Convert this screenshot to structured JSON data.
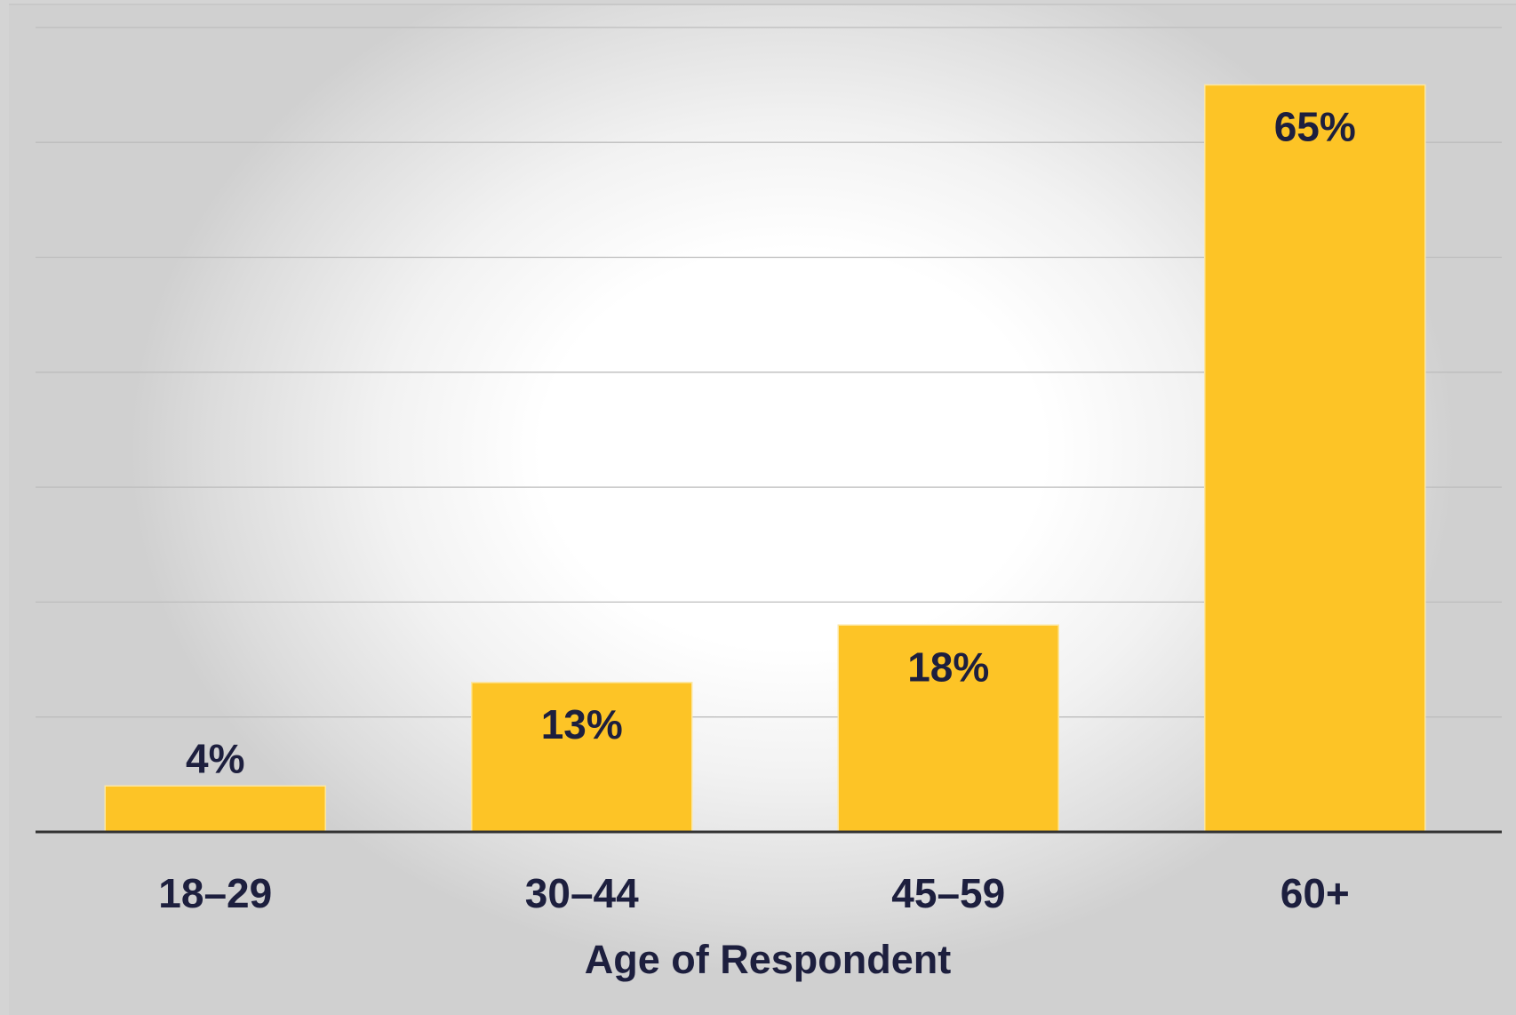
{
  "chart_data": {
    "type": "bar",
    "categories": [
      "18–29",
      "30–44",
      "45–59",
      "60+"
    ],
    "values": [
      4,
      13,
      18,
      65
    ],
    "data_labels": [
      "4%",
      "13%",
      "18%",
      "65%"
    ],
    "title": "",
    "xlabel": "Age of Respondent",
    "ylabel": "",
    "ylim": [
      0,
      70
    ],
    "gridlines": [
      10,
      20,
      30,
      40,
      50,
      60,
      70
    ],
    "grid": true,
    "bar_color": "#fdc426",
    "text_color": "#1d1f3e"
  }
}
